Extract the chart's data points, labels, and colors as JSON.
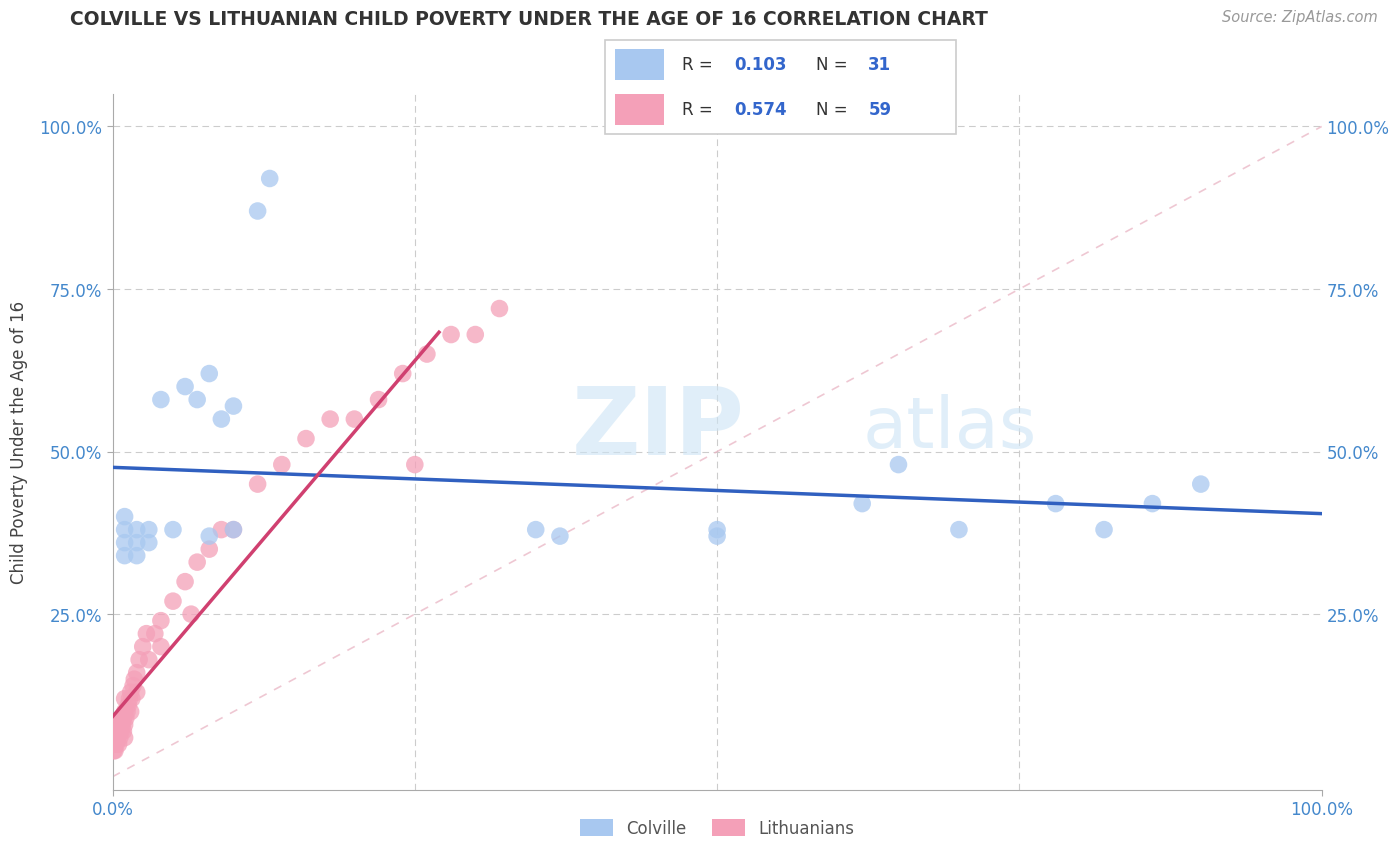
{
  "title": "COLVILLE VS LITHUANIAN CHILD POVERTY UNDER THE AGE OF 16 CORRELATION CHART",
  "source": "Source: ZipAtlas.com",
  "ylabel": "Child Poverty Under the Age of 16",
  "legend_labels": [
    "Colville",
    "Lithuanians"
  ],
  "colville_color": "#a8c8f0",
  "lithuanian_color": "#f4a0b8",
  "colville_line_color": "#3060c0",
  "lithuanian_line_color": "#d04070",
  "watermark_zip": "ZIP",
  "watermark_atlas": "atlas",
  "colville_x": [
    0.01,
    0.01,
    0.01,
    0.01,
    0.02,
    0.02,
    0.02,
    0.03,
    0.03,
    0.04,
    0.05,
    0.06,
    0.07,
    0.08,
    0.08,
    0.09,
    0.1,
    0.1,
    0.12,
    0.13,
    0.35,
    0.37,
    0.5,
    0.5,
    0.62,
    0.65,
    0.7,
    0.78,
    0.82,
    0.86,
    0.9
  ],
  "colville_y": [
    0.34,
    0.36,
    0.38,
    0.4,
    0.34,
    0.36,
    0.38,
    0.36,
    0.38,
    0.58,
    0.38,
    0.6,
    0.58,
    0.37,
    0.62,
    0.55,
    0.38,
    0.57,
    0.87,
    0.92,
    0.38,
    0.37,
    0.38,
    0.37,
    0.42,
    0.48,
    0.38,
    0.42,
    0.38,
    0.42,
    0.45
  ],
  "lithuanian_x": [
    0.001,
    0.002,
    0.002,
    0.003,
    0.003,
    0.004,
    0.004,
    0.005,
    0.005,
    0.005,
    0.006,
    0.006,
    0.007,
    0.007,
    0.008,
    0.008,
    0.009,
    0.009,
    0.01,
    0.01,
    0.01,
    0.01,
    0.011,
    0.012,
    0.013,
    0.014,
    0.015,
    0.015,
    0.016,
    0.017,
    0.018,
    0.02,
    0.02,
    0.022,
    0.025,
    0.028,
    0.03,
    0.035,
    0.04,
    0.04,
    0.05,
    0.06,
    0.065,
    0.07,
    0.08,
    0.09,
    0.1,
    0.12,
    0.14,
    0.16,
    0.18,
    0.2,
    0.22,
    0.24,
    0.25,
    0.26,
    0.28,
    0.3,
    0.32
  ],
  "lithuanian_y": [
    0.04,
    0.04,
    0.05,
    0.05,
    0.06,
    0.06,
    0.07,
    0.05,
    0.07,
    0.08,
    0.06,
    0.08,
    0.07,
    0.09,
    0.08,
    0.09,
    0.07,
    0.09,
    0.06,
    0.08,
    0.1,
    0.12,
    0.09,
    0.1,
    0.11,
    0.12,
    0.1,
    0.13,
    0.12,
    0.14,
    0.15,
    0.13,
    0.16,
    0.18,
    0.2,
    0.22,
    0.18,
    0.22,
    0.2,
    0.24,
    0.27,
    0.3,
    0.25,
    0.33,
    0.35,
    0.38,
    0.38,
    0.45,
    0.48,
    0.52,
    0.55,
    0.55,
    0.58,
    0.62,
    0.48,
    0.65,
    0.68,
    0.68,
    0.72
  ],
  "xlim": [
    0.0,
    1.0
  ],
  "ylim": [
    -0.02,
    1.05
  ],
  "yticks": [
    0.25,
    0.5,
    0.75,
    1.0
  ],
  "ytick_labels": [
    "25.0%",
    "50.0%",
    "75.0%",
    "100.0%"
  ],
  "xticks": [
    0.0,
    1.0
  ],
  "xtick_labels": [
    "0.0%",
    "100.0%"
  ],
  "grid_xticks": [
    0.25,
    0.5,
    0.75
  ],
  "background_color": "#ffffff",
  "grid_color": "#cccccc"
}
